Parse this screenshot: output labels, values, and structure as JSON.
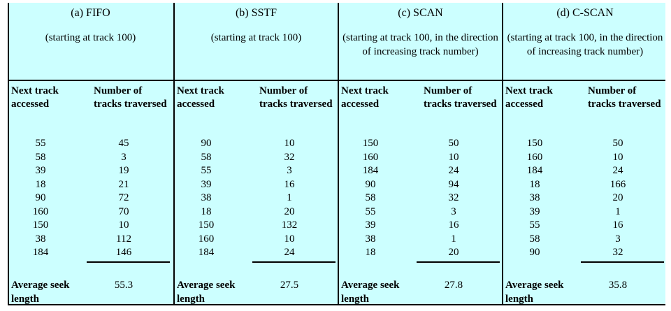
{
  "headers": {
    "next_track": "Next track accessed",
    "tracks_traversed": "Number of tracks traversed",
    "average": "Average seek length"
  },
  "panels": [
    {
      "title": "(a) FIFO",
      "subtitle": "(starting at track 100)",
      "rows": [
        [
          55,
          45
        ],
        [
          58,
          3
        ],
        [
          39,
          19
        ],
        [
          18,
          21
        ],
        [
          90,
          72
        ],
        [
          160,
          70
        ],
        [
          150,
          10
        ],
        [
          38,
          112
        ],
        [
          184,
          146
        ]
      ],
      "average": "55.3"
    },
    {
      "title": "(b) SSTF",
      "subtitle": "(starting at track 100)",
      "rows": [
        [
          90,
          10
        ],
        [
          58,
          32
        ],
        [
          55,
          3
        ],
        [
          39,
          16
        ],
        [
          38,
          1
        ],
        [
          18,
          20
        ],
        [
          150,
          132
        ],
        [
          160,
          10
        ],
        [
          184,
          24
        ]
      ],
      "average": "27.5"
    },
    {
      "title": "(c) SCAN",
      "subtitle": "(starting at track 100, in the direction of increasing track number)",
      "rows": [
        [
          150,
          50
        ],
        [
          160,
          10
        ],
        [
          184,
          24
        ],
        [
          90,
          94
        ],
        [
          58,
          32
        ],
        [
          55,
          3
        ],
        [
          39,
          16
        ],
        [
          38,
          1
        ],
        [
          18,
          20
        ]
      ],
      "average": "27.8"
    },
    {
      "title": "(d) C-SCAN",
      "subtitle": "(starting at track 100, in the direction of increasing track number)",
      "rows": [
        [
          150,
          50
        ],
        [
          160,
          10
        ],
        [
          184,
          24
        ],
        [
          18,
          166
        ],
        [
          38,
          20
        ],
        [
          39,
          1
        ],
        [
          55,
          16
        ],
        [
          58,
          3
        ],
        [
          90,
          32
        ]
      ],
      "average": "35.8"
    }
  ]
}
